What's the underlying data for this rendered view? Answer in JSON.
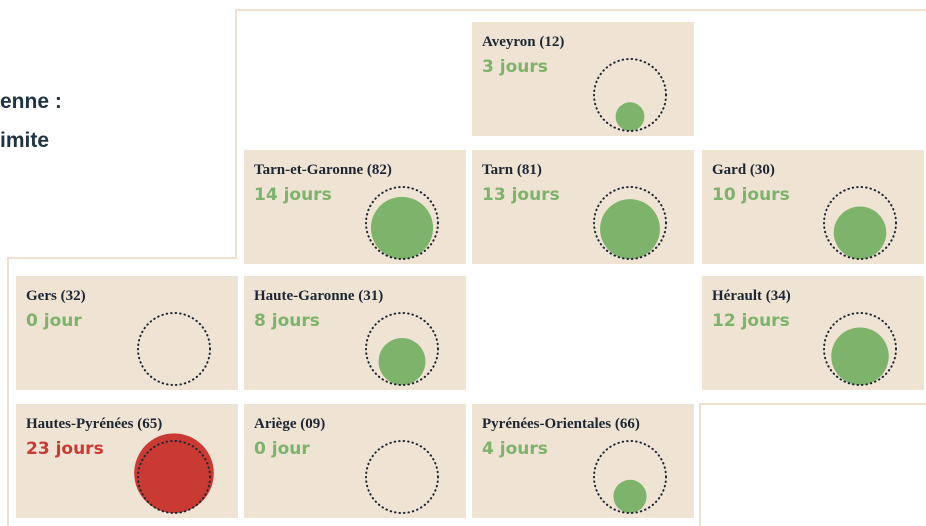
{
  "chart_data": {
    "type": "tilemap",
    "title_lines": [
      "enne :",
      "imite"
    ],
    "tiles": [
      {
        "name": "Aveyron (12)",
        "value": 3,
        "value_label": "3 jours",
        "color": "#7db36a"
      },
      {
        "name": "Tarn-et-Garonne (82)",
        "value": 14,
        "value_label": "14 jours",
        "color": "#7db36a"
      },
      {
        "name": "Tarn (81)",
        "value": 13,
        "value_label": "13 jours",
        "color": "#7db36a"
      },
      {
        "name": "Gard (30)",
        "value": 10,
        "value_label": "10 jours",
        "color": "#7db36a"
      },
      {
        "name": "Gers (32)",
        "value": 0,
        "value_label": "0 jour",
        "color": "#7db36a"
      },
      {
        "name": "Haute-Garonne (31)",
        "value": 8,
        "value_label": "8 jours",
        "color": "#7db36a"
      },
      {
        "name": "Hérault (34)",
        "value": 12,
        "value_label": "12 jours",
        "color": "#7db36a"
      },
      {
        "name": "Hautes-Pyrénées (65)",
        "value": 23,
        "value_label": "23 jours",
        "color": "#c93a33"
      },
      {
        "name": "Ariège (09)",
        "value": 0,
        "value_label": "0 jour",
        "color": "#7db36a"
      },
      {
        "name": "Pyrénées-Orientales (66)",
        "value": 4,
        "value_label": "4 jours",
        "color": "#7db36a"
      }
    ]
  }
}
